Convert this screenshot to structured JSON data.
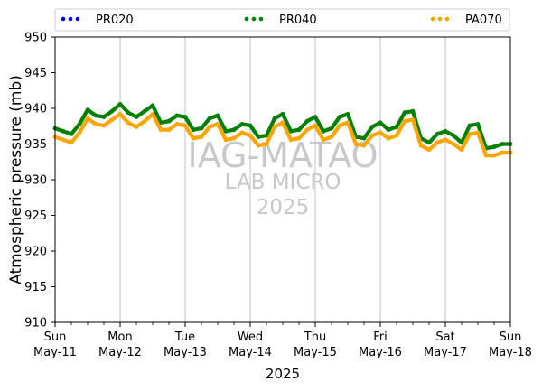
{
  "chart_data": {
    "type": "scatter",
    "xlabel": "2025",
    "ylabel": "Atmospheric pressure (mb)",
    "x_range": [
      "2025-05-11T00:00",
      "2025-05-18T00:00"
    ],
    "ylim": [
      910,
      950
    ],
    "yticks": [
      910,
      915,
      920,
      925,
      930,
      935,
      940,
      945,
      950
    ],
    "x_tick_labels": [
      {
        "at": "2025-05-11T00:00",
        "line1": "Sun",
        "line2": "May-11"
      },
      {
        "at": "2025-05-12T00:00",
        "line1": "Mon",
        "line2": "May-12"
      },
      {
        "at": "2025-05-13T00:00",
        "line1": "Tue",
        "line2": "May-13"
      },
      {
        "at": "2025-05-14T00:00",
        "line1": "Wed",
        "line2": "May-14"
      },
      {
        "at": "2025-05-15T00:00",
        "line1": "Thu",
        "line2": "May-15"
      },
      {
        "at": "2025-05-16T00:00",
        "line1": "Fri",
        "line2": "May-16"
      },
      {
        "at": "2025-05-17T00:00",
        "line1": "Sat",
        "line2": "May-17"
      },
      {
        "at": "2025-05-18T00:00",
        "line1": "Sun",
        "line2": "May-18"
      }
    ],
    "grid": "vertical at day ticks",
    "legend_position": "top, outside plot",
    "watermark": [
      "IAG-MATAO",
      "LAB MICRO",
      "2025"
    ],
    "series": [
      {
        "name": "PR020",
        "color": "#0000ff",
        "x": [],
        "y": []
      },
      {
        "name": "PR040",
        "color": "#008000",
        "x": [
          "2025-05-11T00:00",
          "2025-05-11T03:00",
          "2025-05-11T06:00",
          "2025-05-11T09:00",
          "2025-05-11T12:00",
          "2025-05-11T15:00",
          "2025-05-11T18:00",
          "2025-05-11T21:00",
          "2025-05-12T00:00",
          "2025-05-12T03:00",
          "2025-05-12T06:00",
          "2025-05-12T09:00",
          "2025-05-12T12:00",
          "2025-05-12T15:00",
          "2025-05-12T18:00",
          "2025-05-12T21:00",
          "2025-05-13T00:00",
          "2025-05-13T03:00",
          "2025-05-13T06:00",
          "2025-05-13T09:00",
          "2025-05-13T12:00",
          "2025-05-13T15:00",
          "2025-05-13T18:00",
          "2025-05-13T21:00",
          "2025-05-14T00:00",
          "2025-05-14T03:00",
          "2025-05-14T06:00",
          "2025-05-14T09:00",
          "2025-05-14T12:00",
          "2025-05-14T15:00",
          "2025-05-14T18:00",
          "2025-05-14T21:00",
          "2025-05-15T00:00",
          "2025-05-15T03:00",
          "2025-05-15T06:00",
          "2025-05-15T09:00",
          "2025-05-15T12:00",
          "2025-05-15T15:00",
          "2025-05-15T18:00",
          "2025-05-15T21:00",
          "2025-05-16T00:00",
          "2025-05-16T03:00",
          "2025-05-16T06:00",
          "2025-05-16T09:00",
          "2025-05-16T12:00",
          "2025-05-16T15:00",
          "2025-05-16T18:00",
          "2025-05-16T21:00",
          "2025-05-17T00:00",
          "2025-05-17T03:00",
          "2025-05-17T06:00",
          "2025-05-17T09:00",
          "2025-05-17T12:00",
          "2025-05-17T15:00",
          "2025-05-17T18:00",
          "2025-05-17T21:00",
          "2025-05-18T00:00"
        ],
        "y": [
          937.2,
          936.8,
          936.4,
          937.8,
          939.8,
          939.0,
          938.8,
          939.6,
          940.6,
          939.4,
          938.8,
          939.6,
          940.4,
          938.0,
          938.2,
          939.0,
          938.8,
          937.0,
          937.2,
          938.6,
          939.0,
          936.8,
          937.0,
          937.8,
          937.6,
          936.0,
          936.2,
          938.6,
          939.2,
          936.8,
          937.0,
          938.2,
          938.8,
          936.8,
          937.2,
          938.8,
          939.2,
          936.0,
          935.8,
          937.4,
          938.0,
          937.0,
          937.4,
          939.4,
          939.6,
          935.8,
          935.2,
          936.4,
          936.8,
          936.2,
          935.2,
          937.6,
          937.8,
          934.4,
          934.6,
          935.0,
          935.0
        ]
      },
      {
        "name": "PA070",
        "color": "#ffa500",
        "x": [
          "2025-05-11T00:00",
          "2025-05-11T03:00",
          "2025-05-11T06:00",
          "2025-05-11T09:00",
          "2025-05-11T12:00",
          "2025-05-11T15:00",
          "2025-05-11T18:00",
          "2025-05-11T21:00",
          "2025-05-12T00:00",
          "2025-05-12T03:00",
          "2025-05-12T06:00",
          "2025-05-12T09:00",
          "2025-05-12T12:00",
          "2025-05-12T15:00",
          "2025-05-12T18:00",
          "2025-05-12T21:00",
          "2025-05-13T00:00",
          "2025-05-13T03:00",
          "2025-05-13T06:00",
          "2025-05-13T09:00",
          "2025-05-13T12:00",
          "2025-05-13T15:00",
          "2025-05-13T18:00",
          "2025-05-13T21:00",
          "2025-05-14T00:00",
          "2025-05-14T03:00",
          "2025-05-14T06:00",
          "2025-05-14T09:00",
          "2025-05-14T12:00",
          "2025-05-14T15:00",
          "2025-05-14T18:00",
          "2025-05-14T21:00",
          "2025-05-15T00:00",
          "2025-05-15T03:00",
          "2025-05-15T06:00",
          "2025-05-15T09:00",
          "2025-05-15T12:00",
          "2025-05-15T15:00",
          "2025-05-15T18:00",
          "2025-05-15T21:00",
          "2025-05-16T00:00",
          "2025-05-16T03:00",
          "2025-05-16T06:00",
          "2025-05-16T09:00",
          "2025-05-16T12:00",
          "2025-05-16T15:00",
          "2025-05-16T18:00",
          "2025-05-16T21:00",
          "2025-05-17T00:00",
          "2025-05-17T03:00",
          "2025-05-17T06:00",
          "2025-05-17T09:00",
          "2025-05-17T12:00",
          "2025-05-17T15:00",
          "2025-05-17T18:00",
          "2025-05-17T21:00",
          "2025-05-18T00:00"
        ],
        "y": [
          936.0,
          935.6,
          935.2,
          936.6,
          938.6,
          937.8,
          937.6,
          938.4,
          939.2,
          938.0,
          937.4,
          938.2,
          939.2,
          937.0,
          937.0,
          937.8,
          937.6,
          935.8,
          936.0,
          937.4,
          937.8,
          935.6,
          935.8,
          936.6,
          936.2,
          934.8,
          935.0,
          937.4,
          938.0,
          935.6,
          935.8,
          937.0,
          937.6,
          935.6,
          936.0,
          937.6,
          938.0,
          935.0,
          934.8,
          936.2,
          936.6,
          935.8,
          936.2,
          938.2,
          938.4,
          934.8,
          934.2,
          935.2,
          935.6,
          935.0,
          934.2,
          936.4,
          936.6,
          933.4,
          933.4,
          933.8,
          933.8
        ]
      }
    ]
  }
}
